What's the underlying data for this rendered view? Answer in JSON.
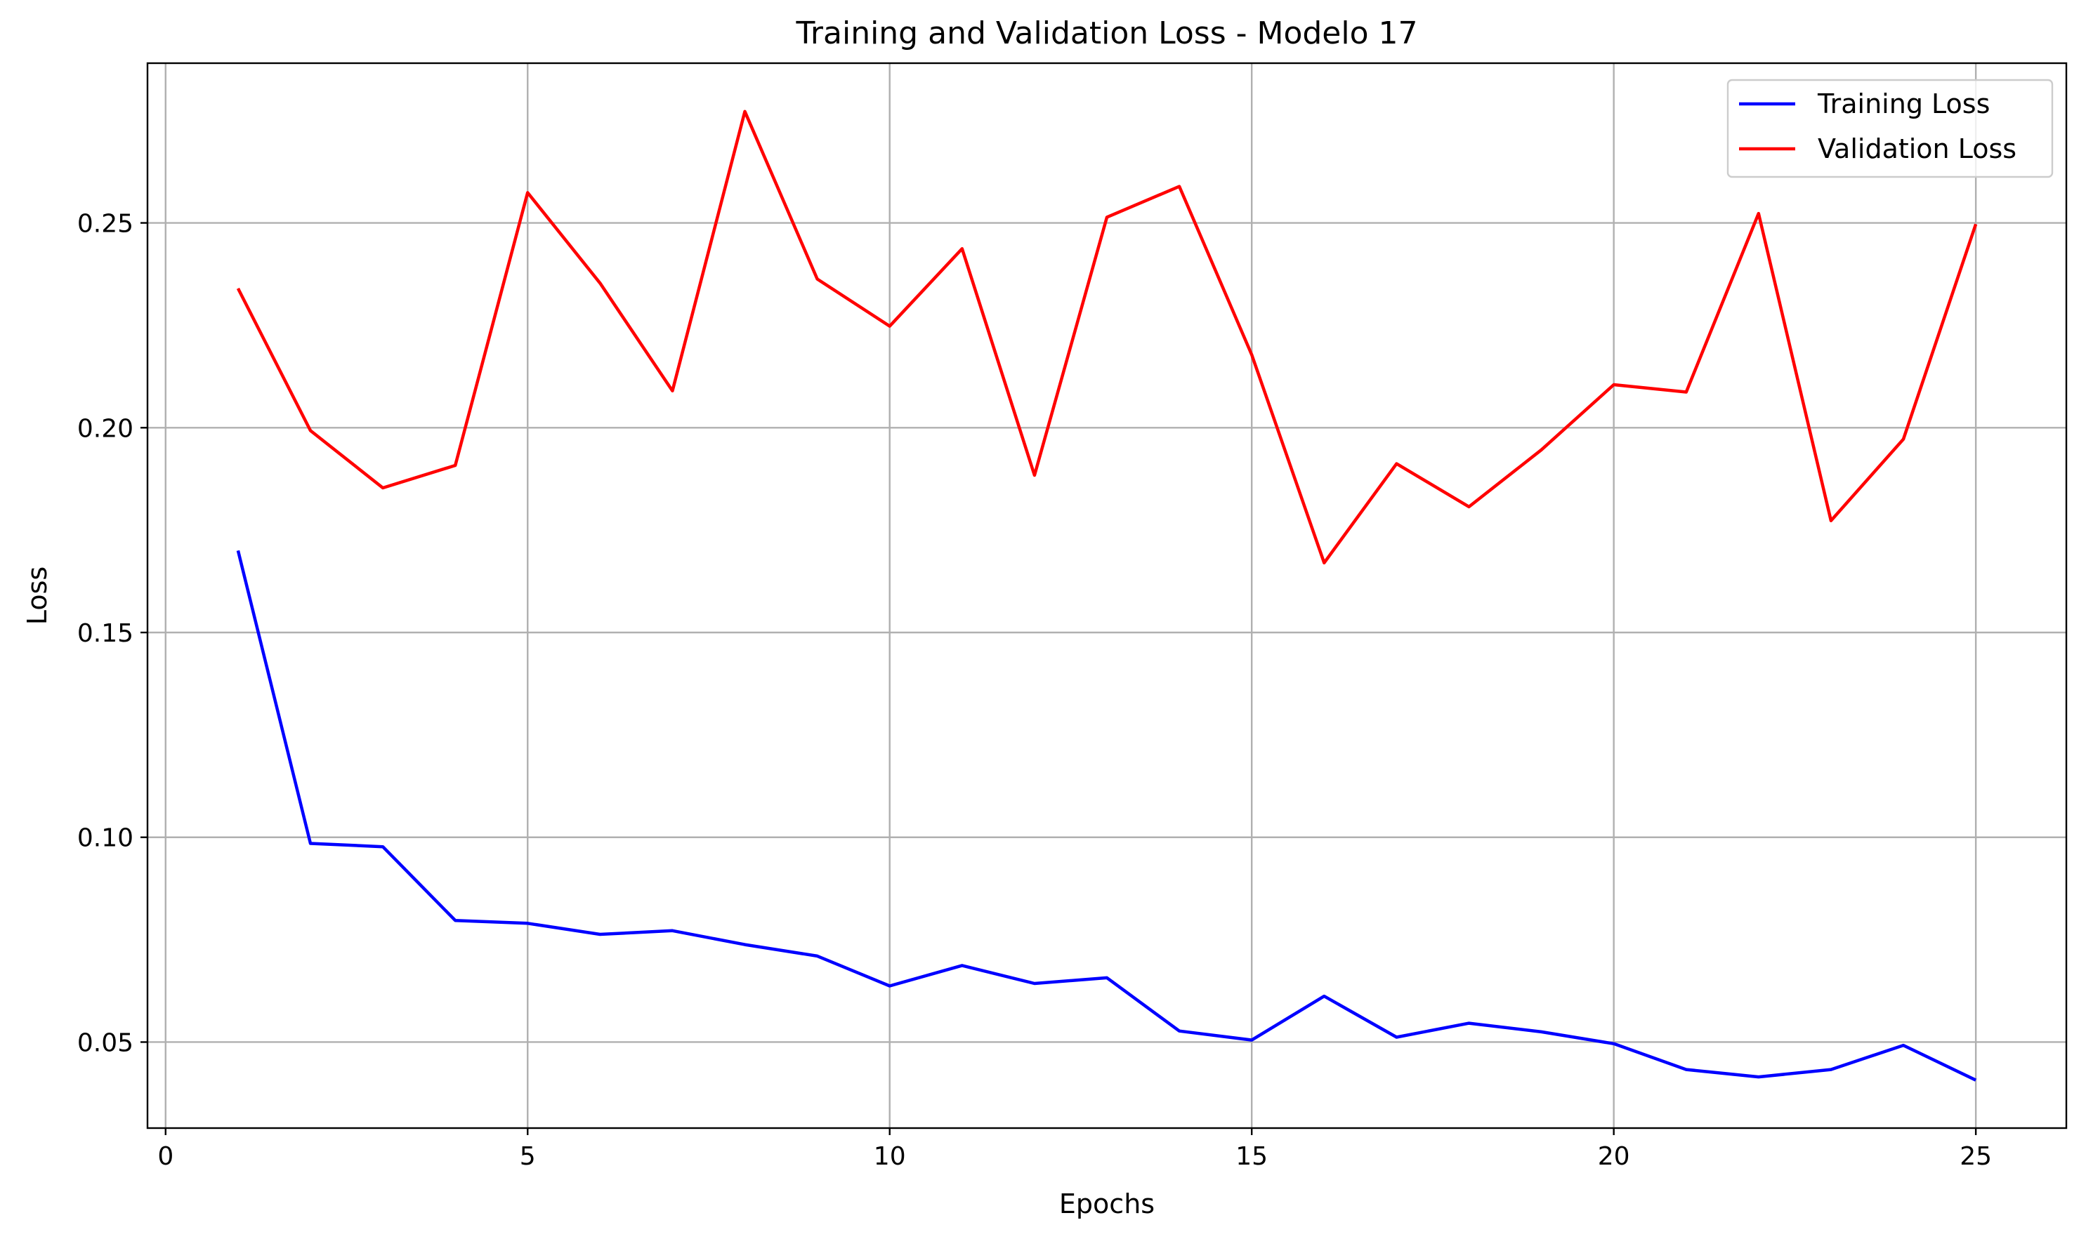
{
  "chart_data": {
    "type": "line",
    "title": "Training and Validation Loss - Modelo 17",
    "xlabel": "Epochs",
    "ylabel": "Loss",
    "xlim": [
      -0.25,
      26.25
    ],
    "ylim": [
      0.029,
      0.289
    ],
    "xticks": [
      0,
      5,
      10,
      15,
      20,
      25
    ],
    "xtick_labels": [
      "0",
      "5",
      "10",
      "15",
      "20",
      "25"
    ],
    "yticks": [
      0.05,
      0.1,
      0.15,
      0.2,
      0.25
    ],
    "ytick_labels": [
      "0.05",
      "0.10",
      "0.15",
      "0.20",
      "0.25"
    ],
    "grid": true,
    "legend_position": "top-right",
    "x": [
      1,
      2,
      3,
      4,
      5,
      6,
      7,
      8,
      9,
      10,
      11,
      12,
      13,
      14,
      15,
      16,
      17,
      18,
      19,
      20,
      21,
      22,
      23,
      24,
      25
    ],
    "series": [
      {
        "name": "Training Loss",
        "color": "#0000ff",
        "values": [
          0.17,
          0.0985,
          0.0977,
          0.0797,
          0.079,
          0.0763,
          0.0772,
          0.0738,
          0.071,
          0.0637,
          0.0687,
          0.0643,
          0.0657,
          0.0527,
          0.0505,
          0.0612,
          0.0512,
          0.0546,
          0.0525,
          0.0496,
          0.0433,
          0.0415,
          0.0433,
          0.0492,
          0.0407
        ]
      },
      {
        "name": "Validation Loss",
        "color": "#ff0000",
        "values": [
          0.234,
          0.1993,
          0.1853,
          0.1908,
          0.2574,
          0.2353,
          0.209,
          0.2772,
          0.2363,
          0.2248,
          0.2437,
          0.1884,
          0.2514,
          0.2589,
          0.2178,
          0.167,
          0.1912,
          0.1807,
          0.1946,
          0.2105,
          0.2087,
          0.2523,
          0.1773,
          0.1972,
          0.2497
        ]
      }
    ]
  }
}
